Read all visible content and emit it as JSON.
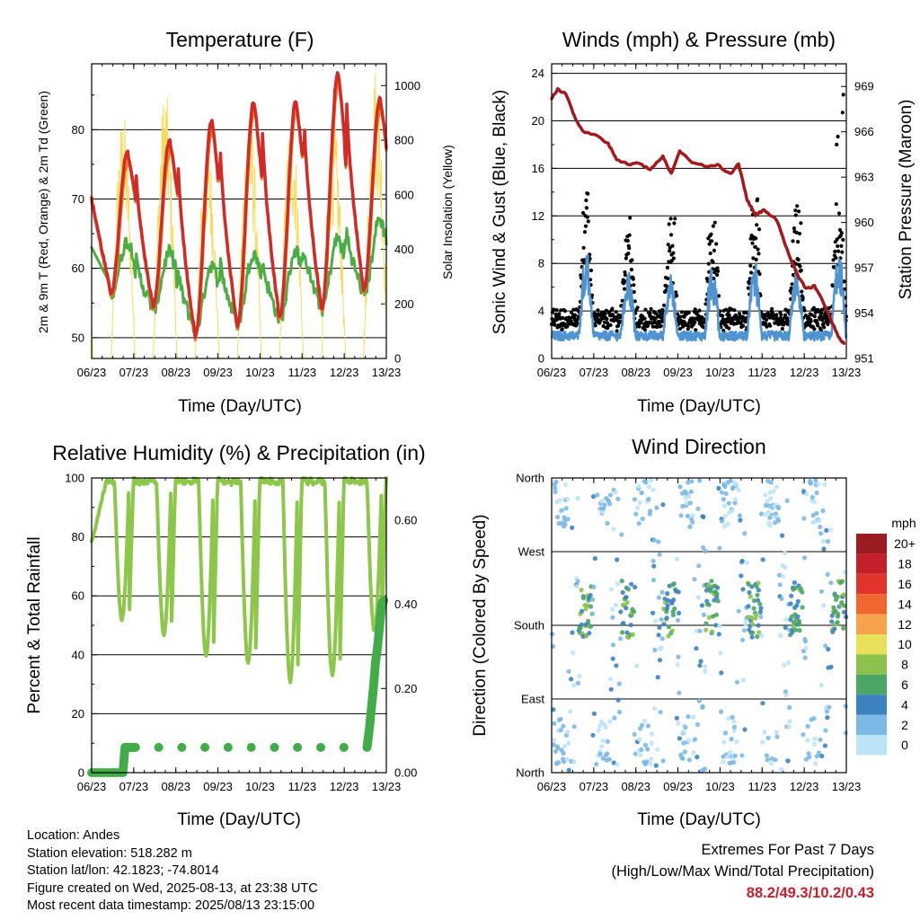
{
  "panels": {
    "temperature": {
      "title": "Temperature (F)",
      "ylabel_left": "2m & 9m T (Red, Orange) & 2m Td (Green)",
      "ylabel_right": "Solar Insolation (Yellow)",
      "xlabel": "Time (Day/UTC)"
    },
    "winds": {
      "title": "Winds (mph) & Pressure (mb)",
      "ylabel_left": "Sonic Wind & Gust (Blue, Black)",
      "ylabel_right": "Station Pressure (Maroon)",
      "xlabel": "Time (Day/UTC)"
    },
    "humidity": {
      "title": "Relative Humidity (%) & Precipitation (in)",
      "ylabel_left": "Percent & Total Rainfall",
      "xlabel": "Time (Day/UTC)"
    },
    "direction": {
      "title": "Wind Direction",
      "ylabel_left": "Direction (Colored By Speed)",
      "xlabel": "Time (Day/UTC)",
      "colorbar_title": "mph",
      "colorbar_labels": [
        "20+",
        "18",
        "16",
        "14",
        "12",
        "10",
        "8",
        "6",
        "4",
        "2",
        "0"
      ],
      "colorbar_colors": [
        "#9b1c20",
        "#c4202a",
        "#e2342b",
        "#f0662e",
        "#f7a24c",
        "#e9e05a",
        "#8cc24c",
        "#4aa665",
        "#3c82c0",
        "#7db9e6",
        "#bde3f7"
      ]
    }
  },
  "chart_data": [
    {
      "type": "line",
      "title": "Temperature (F)",
      "xlabel": "Time (Day/UTC)",
      "ylabel": "2m & 9m T (Red, Orange) & 2m Td (Green)",
      "y2label": "Solar Insolation (Yellow)",
      "x_ticks": [
        "06/23",
        "07/23",
        "08/23",
        "09/23",
        "10/23",
        "11/23",
        "12/23",
        "13/23"
      ],
      "xlim": [
        6.958,
        13.958
      ],
      "ylim": [
        47,
        89.5
      ],
      "y_ticks": [
        50,
        60,
        70,
        80
      ],
      "y2lim": [
        0,
        1080
      ],
      "y2_ticks": [
        0,
        200,
        400,
        600,
        800,
        1000
      ],
      "grid": "horizontal",
      "series": [
        {
          "name": "2m T",
          "color": "#d42a26",
          "axis": "left",
          "daily_max": [
            76.8,
            78.5,
            81.3,
            84.2,
            84.3,
            88.2,
            84.5
          ],
          "daily_min": [
            56.5,
            54.5,
            50.2,
            51.8,
            52.8,
            54.2,
            57.0
          ]
        },
        {
          "name": "9m T",
          "color": "#f37c24",
          "axis": "left"
        },
        {
          "name": "2m Td",
          "color": "#4bae45",
          "axis": "left",
          "daily_max": [
            65.5,
            64.0,
            62.5,
            64.5,
            64.8,
            66.5,
            69.5
          ],
          "daily_min": [
            55.0,
            52.5,
            49.3,
            50.0,
            50.5,
            52.0,
            54.0
          ]
        },
        {
          "name": "Solar Insolation",
          "color": "#f6dc5a",
          "axis": "right",
          "daily_max": [
            910,
            1000,
            830,
            930,
            910,
            880,
            1085
          ]
        }
      ]
    },
    {
      "type": "line",
      "title": "Winds (mph) & Pressure (mb)",
      "xlabel": "Time (Day/UTC)",
      "ylabel": "Sonic Wind & Gust (Blue, Black)",
      "y2label": "Station Pressure (Maroon)",
      "x_ticks": [
        "06/23",
        "07/23",
        "08/23",
        "09/23",
        "10/23",
        "11/23",
        "12/23",
        "13/23"
      ],
      "xlim": [
        6.958,
        13.958
      ],
      "ylim": [
        0,
        24.8
      ],
      "y_ticks": [
        0,
        4,
        8,
        12,
        16,
        20,
        24
      ],
      "y2lim": [
        951,
        970.5
      ],
      "y2_ticks": [
        951,
        954,
        957,
        960,
        963,
        966,
        969
      ],
      "grid": "horizontal",
      "series": [
        {
          "name": "Sonic Wind",
          "color": "#4f93d0",
          "axis": "left",
          "daily_peak": [
            9.0,
            7.5,
            7.0,
            8.0,
            8.0,
            7.5,
            9.5
          ]
        },
        {
          "name": "Gust",
          "color": "#000000",
          "axis": "left",
          "daily_peak": [
            14.8,
            12.0,
            12.0,
            11.5,
            13.5,
            12.5,
            22.7
          ]
        },
        {
          "name": "Station Pressure",
          "color": "#a3191d",
          "axis": "right",
          "x": [
            6.96,
            7.1,
            7.3,
            7.5,
            7.7,
            8.0,
            8.3,
            8.5,
            8.8,
            9.0,
            9.3,
            9.6,
            9.8,
            10.0,
            10.3,
            10.6,
            10.9,
            11.2,
            11.4,
            11.6,
            11.8,
            12.0,
            12.3,
            12.6,
            12.8,
            13.0,
            13.2,
            13.4,
            13.6,
            13.8,
            13.9
          ],
          "y": [
            968.2,
            968.8,
            968.5,
            967.0,
            966.0,
            965.8,
            965.2,
            964.2,
            963.8,
            964.0,
            963.5,
            964.4,
            963.2,
            964.7,
            964.0,
            963.7,
            963.8,
            963.2,
            963.9,
            961.5,
            960.5,
            960.8,
            960.2,
            957.8,
            956.5,
            955.6,
            955.8,
            954.8,
            953.5,
            952.3,
            952.0
          ]
        }
      ]
    },
    {
      "type": "line",
      "title": "Relative Humidity (%) & Precipitation (in)",
      "xlabel": "Time (Day/UTC)",
      "ylabel": "Percent & Total Rainfall",
      "x_ticks": [
        "06/23",
        "07/23",
        "08/23",
        "09/23",
        "10/23",
        "11/23",
        "12/23",
        "13/23"
      ],
      "xlim": [
        6.958,
        13.958
      ],
      "ylim": [
        0,
        100
      ],
      "y_ticks": [
        0,
        20,
        40,
        60,
        80,
        100
      ],
      "y2lim": [
        0,
        0.7
      ],
      "y2_ticks": [
        "0.00",
        "0.20",
        "0.40",
        "0.60"
      ],
      "grid": "horizontal",
      "series": [
        {
          "name": "Relative Humidity",
          "color": "#8dc74a",
          "axis": "left",
          "daily_max": [
            100,
            100,
            99,
            99,
            99,
            99,
            99
          ],
          "daily_min": [
            52,
            47,
            40,
            37,
            31,
            33,
            48
          ]
        },
        {
          "name": "Total Rainfall",
          "color": "#42ad48",
          "axis": "right",
          "x": [
            6.96,
            7.7,
            7.75,
            8.0,
            13.5,
            13.55,
            13.6,
            13.65,
            13.7,
            13.75,
            13.8,
            13.85,
            13.9
          ],
          "y": [
            0.0,
            0.0,
            0.06,
            0.06,
            0.06,
            0.1,
            0.15,
            0.2,
            0.26,
            0.3,
            0.35,
            0.4,
            0.41
          ]
        }
      ]
    },
    {
      "type": "scatter",
      "title": "Wind Direction",
      "xlabel": "Time (Day/UTC)",
      "ylabel": "Direction (Colored By Speed)",
      "x_ticks": [
        "06/23",
        "07/23",
        "08/23",
        "09/23",
        "10/23",
        "11/23",
        "12/23",
        "13/23"
      ],
      "xlim": [
        6.958,
        13.958
      ],
      "ylim": [
        0,
        360
      ],
      "y_ticks": [
        "North",
        "East",
        "South",
        "West",
        "North"
      ],
      "grid": "horizontal",
      "colorbar": {
        "title": "mph",
        "range": [
          0,
          20
        ]
      }
    }
  ],
  "info": {
    "location": "Location: Andes",
    "elevation": "Station elevation: 518.282 m",
    "latlon": "Station lat/lon: 42.1823; -74.8014",
    "created": "Figure created on Wed, 2025-08-13, at 23:38 UTC",
    "recent": "Most recent data timestamp: 2025/08/13 23:15:00"
  },
  "extremes": {
    "line1": "Extremes For Past 7 Days",
    "line2": "(High/Low/Max Wind/Total Precipitation)",
    "values": "88.2/49.3/10.2/0.43"
  }
}
